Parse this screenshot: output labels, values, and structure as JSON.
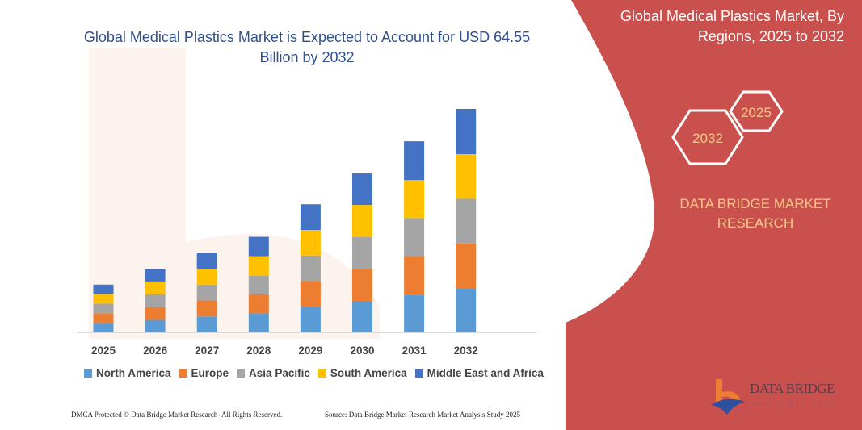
{
  "title": "Global Medical Plastics Market is Expected to Account for USD 64.55 Billion by 2032",
  "side_panel": {
    "title": "Global Medical Plastics Market, By Regions, 2025 to 2032",
    "hex_start": "2025",
    "hex_end": "2032",
    "brand": "DATA BRIDGE MARKET RESEARCH",
    "logo_text": "DATA BRIDGE",
    "logo_subtext": "MARKET RESEARCH",
    "color": "#c9504c"
  },
  "footer": {
    "left": "DMCA Protected © Data Bridge Market Research- All Rights Reserved.",
    "right": "Source: Data Bridge Market Research Market Analysis Study 2025"
  },
  "chart_data": {
    "type": "bar",
    "stacked": true,
    "title": "Global Medical Plastics Market is Expected to Account for USD 64.55 Billion by 2032",
    "xlabel": "",
    "ylabel": "",
    "y_axis_shown": false,
    "grid": false,
    "legend_position": "bottom",
    "categories": [
      "2025",
      "2026",
      "2027",
      "2028",
      "2029",
      "2030",
      "2031",
      "2032"
    ],
    "series": [
      {
        "name": "North America",
        "color": "#5b9bd5",
        "values": [
          2.7,
          3.6,
          4.6,
          5.5,
          7.4,
          9.1,
          10.9,
          12.8
        ]
      },
      {
        "name": "Europe",
        "color": "#ed7d31",
        "values": [
          2.8,
          3.7,
          4.6,
          5.5,
          7.4,
          9.2,
          11.0,
          12.9
        ]
      },
      {
        "name": "Asia Pacific",
        "color": "#a5a5a5",
        "values": [
          2.8,
          3.7,
          4.6,
          5.4,
          7.4,
          9.2,
          11.1,
          12.9
        ]
      },
      {
        "name": "South America",
        "color": "#ffc000",
        "values": [
          2.8,
          3.7,
          4.5,
          5.6,
          7.4,
          9.3,
          11.0,
          12.9
        ]
      },
      {
        "name": "Middle East and Africa",
        "color": "#4472c4",
        "values": [
          2.7,
          3.5,
          4.6,
          5.6,
          7.4,
          9.1,
          11.2,
          13.05
        ]
      }
    ]
  }
}
